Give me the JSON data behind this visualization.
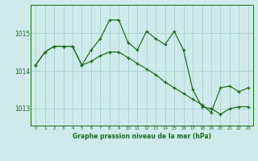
{
  "title": "Graphe pression niveau de la mer (hPa)",
  "bg_color": "#ceeaea",
  "grid_color": "#b0d4d4",
  "line_color": "#1a6b1a",
  "x_labels": [
    "0",
    "1",
    "2",
    "3",
    "4",
    "5",
    "6",
    "7",
    "8",
    "9",
    "10",
    "11",
    "12",
    "13",
    "14",
    "15",
    "16",
    "17",
    "18",
    "19",
    "20",
    "21",
    "22",
    "23"
  ],
  "ylim": [
    1012.55,
    1015.75
  ],
  "yticks": [
    1013,
    1014,
    1015
  ],
  "line1_x": [
    0,
    1,
    2,
    3,
    4,
    5,
    6,
    7,
    8,
    9,
    10,
    11,
    12,
    13,
    14,
    15,
    16,
    17,
    18,
    19,
    20,
    21,
    22,
    23
  ],
  "line1_y": [
    1014.15,
    1014.5,
    1014.65,
    1014.65,
    1014.65,
    1014.15,
    1014.55,
    1014.85,
    1015.35,
    1015.35,
    1014.75,
    1014.55,
    1015.05,
    1014.85,
    1014.7,
    1015.05,
    1014.55,
    1013.5,
    1013.05,
    1013.0,
    1012.85,
    1013.0,
    1013.05,
    1013.05
  ],
  "line2_x": [
    0,
    1,
    2,
    3,
    4,
    5,
    6,
    7,
    8,
    9,
    10,
    11,
    12,
    13,
    14,
    15,
    16,
    17,
    18,
    19,
    20,
    21,
    22,
    23
  ],
  "line2_y": [
    1014.15,
    1014.5,
    1014.65,
    1014.65,
    1014.65,
    1014.15,
    1014.25,
    1014.4,
    1014.5,
    1014.5,
    1014.35,
    1014.2,
    1014.05,
    1013.9,
    1013.7,
    1013.55,
    1013.4,
    1013.25,
    1013.1,
    1012.9,
    1013.55,
    1013.6,
    1013.45,
    1013.55
  ]
}
